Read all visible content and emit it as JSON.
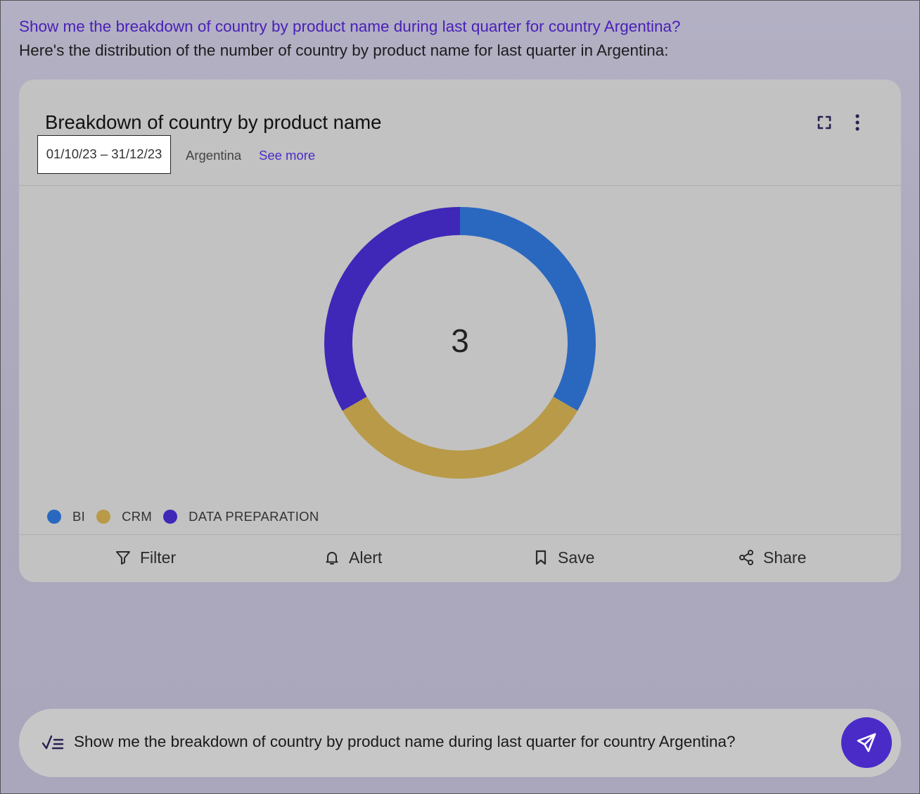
{
  "conversation": {
    "question": "Show me the breakdown of country by product name during last quarter for country Argentina?",
    "answer": "Here's the distribution of the number of country by product name for last quarter in Argentina:"
  },
  "card": {
    "title": "Breakdown of country by product name",
    "date_range": "01/10/23 – 31/12/23",
    "country": "Argentina",
    "see_more": "See more",
    "center_value": "3",
    "actions": {
      "filter": "Filter",
      "alert": "Alert",
      "save": "Save",
      "share": "Share"
    },
    "icons": [
      "expand-icon",
      "more-vertical-icon",
      "filter-icon",
      "bell-icon",
      "bookmark-icon",
      "share-icon"
    ]
  },
  "chart_data": {
    "type": "pie",
    "style": "donut",
    "categories": [
      "BI",
      "CRM",
      "DATA PREPARATION"
    ],
    "values": [
      1,
      1,
      1
    ],
    "colors": [
      "#2a68c0",
      "#b89a48",
      "#3f28b8"
    ],
    "center_label": "3",
    "legend_position": "bottom-left"
  },
  "prompt": {
    "text": "Show me the breakdown of country by product name during last quarter for country Argentina?",
    "icons": [
      "checklist-icon",
      "send-icon"
    ]
  },
  "colors": {
    "accent": "#4a2bc8",
    "question_text": "#4a20b8"
  }
}
